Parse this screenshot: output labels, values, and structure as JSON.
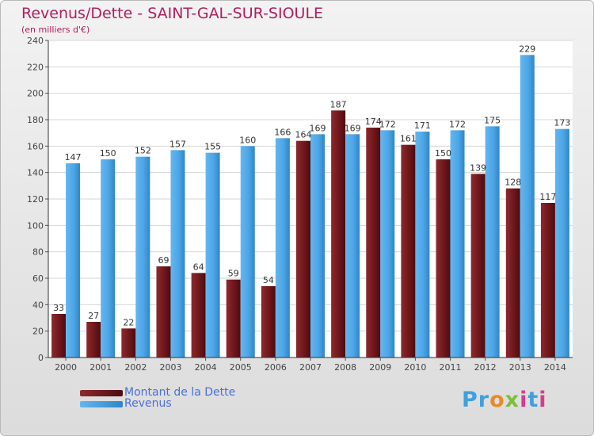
{
  "header": {
    "title": "Revenus/Dette - SAINT-GAL-SUR-SIOULE",
    "subtitle": "(en milliers d'€)"
  },
  "legend": {
    "debt_label": "Montant de la Dette",
    "revenue_label": "Revenus"
  },
  "logo": {
    "text": "Proxiti"
  },
  "colors": {
    "debt": "#7a1e22",
    "revenue": "#4fa8e8",
    "title": "#b01e5e",
    "legend_text": "#4a6fd8"
  },
  "chart_data": {
    "type": "bar",
    "title": "Revenus/Dette - SAINT-GAL-SUR-SIOULE",
    "subtitle": "(en milliers d'€)",
    "categories": [
      "2000",
      "2001",
      "2002",
      "2003",
      "2004",
      "2005",
      "2006",
      "2007",
      "2008",
      "2009",
      "2010",
      "2011",
      "2012",
      "2013",
      "2014"
    ],
    "series": [
      {
        "name": "Montant de la Dette",
        "values": [
          33,
          27,
          22,
          69,
          64,
          59,
          54,
          164,
          187,
          174,
          161,
          150,
          139,
          128,
          117
        ]
      },
      {
        "name": "Revenus",
        "values": [
          147,
          150,
          152,
          157,
          155,
          160,
          166,
          169,
          169,
          172,
          171,
          172,
          175,
          229,
          173
        ]
      }
    ],
    "ylim": [
      0,
      240
    ],
    "yticks": [
      0,
      20,
      40,
      60,
      80,
      100,
      120,
      140,
      160,
      180,
      200,
      220,
      240
    ],
    "grid": true,
    "legend_position": "bottom-left"
  }
}
